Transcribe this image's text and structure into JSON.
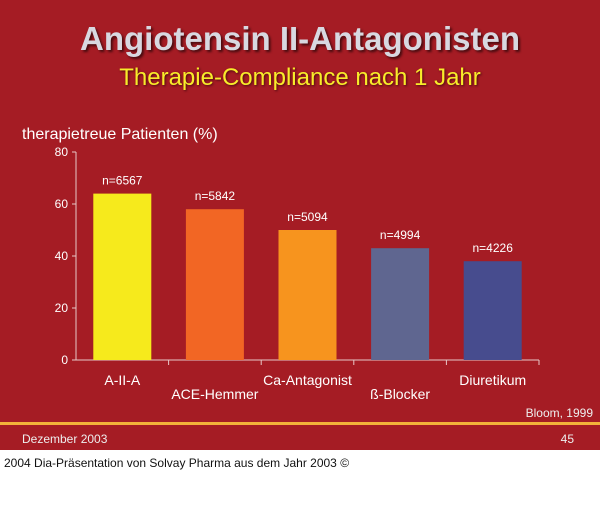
{
  "slide": {
    "title": "Angiotensin II-Antagonisten",
    "subtitle": "Therapie-Compliance nach 1 Jahr",
    "source": "Bloom, 1999",
    "date": "Dezember 2003",
    "page_number": "45",
    "background_color": "#a51c24",
    "rule_color": "#f3b23a"
  },
  "caption": "2004 Dia-Präsentation von Solvay Pharma aus dem Jahr 2003 ©",
  "chart_data": {
    "type": "bar",
    "title": "",
    "ylabel": "therapietreue Patienten (%)",
    "xlabel": "",
    "ylim": [
      0,
      80
    ],
    "yticks": [
      0,
      20,
      40,
      60,
      80
    ],
    "grid": false,
    "categories": [
      "A-II-A",
      "ACE-Hemmer",
      "Ca-Antagonist",
      "ß-Blocker",
      "Diuretikum"
    ],
    "values": [
      64,
      58,
      50,
      43,
      38
    ],
    "data_labels": [
      "n=6567",
      "n=5842",
      "n=5094",
      "n=4994",
      "n=4226"
    ],
    "colors": [
      "#f6ea1c",
      "#f26624",
      "#f7941e",
      "#5f6690",
      "#474c8e"
    ]
  }
}
